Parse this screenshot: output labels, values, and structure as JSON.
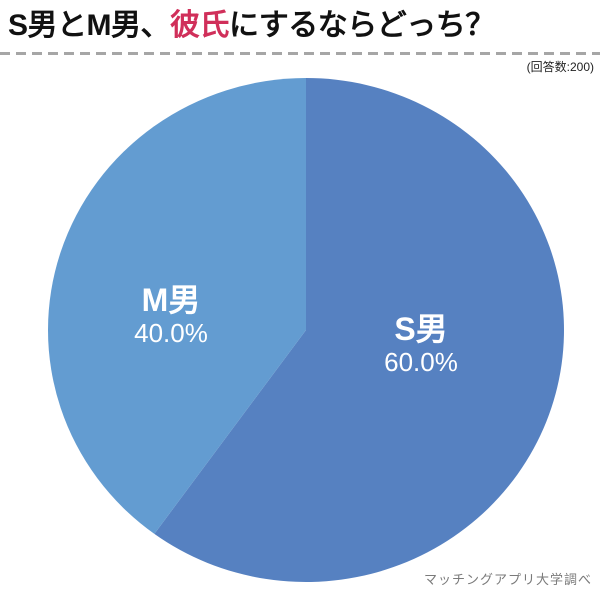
{
  "page": {
    "background": "#ffffff"
  },
  "header": {
    "title_pre": "S男とM男、",
    "title_highlight": "彼氏",
    "title_post": "にするならどっち？",
    "highlight_color": "#d02f5a",
    "note": "(回答数:200)"
  },
  "chart_data": {
    "type": "pie",
    "title": "S男とM男、彼氏にするならどっち？",
    "categories": [
      "S男",
      "M男"
    ],
    "values": [
      60.0,
      40.0
    ],
    "value_labels": [
      "60.0%",
      "40.0%"
    ],
    "colors": [
      "#5681c1",
      "#639cd1"
    ],
    "slice_keys": [
      "s",
      "m"
    ],
    "start_angle_deg": 0,
    "direction": "clockwise",
    "label_color": "#ffffff",
    "respondents": 200,
    "legend": "none"
  },
  "footer": {
    "credit": "マッチングアプリ大学調べ"
  }
}
